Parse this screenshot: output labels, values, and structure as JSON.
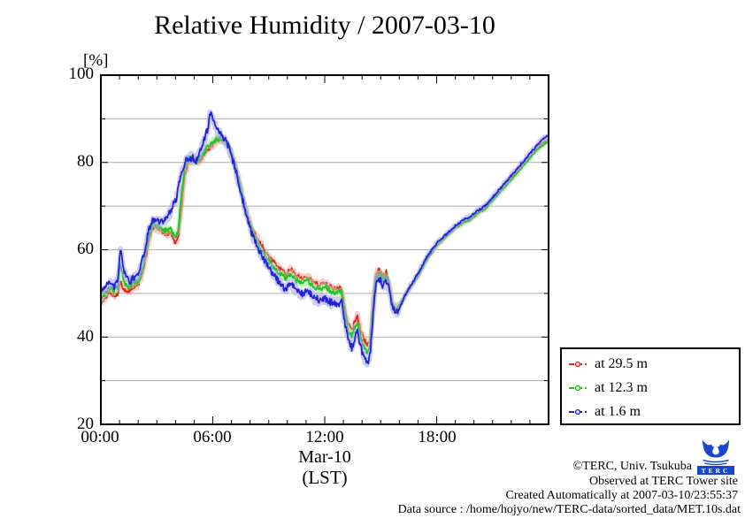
{
  "title": "Relative Humidity / 2007-03-10",
  "y_axis": {
    "unit_label": "[%]",
    "tick_labels": [
      "100",
      "80",
      "60",
      "40",
      "20"
    ],
    "min": 20,
    "max": 100,
    "grid_step": 10
  },
  "x_axis": {
    "tick_labels": [
      "00:00",
      "06:00",
      "12:00",
      "18:00"
    ],
    "date_label": "Mar-10",
    "tz_label": "(LST)",
    "hours_span": 24,
    "minor_tick_hours": 1,
    "major_tick_hours": 6
  },
  "legend": [
    {
      "label": "at 29.5 m",
      "color": "#e0271e"
    },
    {
      "label": "at 12.3 m",
      "color": "#22c322"
    },
    {
      "label": "at 1.6 m",
      "color": "#2424d6"
    }
  ],
  "footer": {
    "copyright": "©TERC, Univ. Tsukuba",
    "observed": "Observed at TERC Tower site",
    "created": "Created Automatically at 2007-03-10/23:55:37",
    "source": "Data source : /home/hojyo/new/TERC-data/sorted_data/MET.10s.dat",
    "logo_text": "TERC",
    "logo_color": "#1a46cf"
  },
  "colors": {
    "grid": "#ababab",
    "frame": "#000000"
  },
  "chart_data": {
    "type": "line",
    "title": "Relative Humidity / 2007-03-10",
    "xlabel": "Mar-10 (LST)",
    "ylabel": "[%]",
    "x_unit": "hours LST",
    "xlim": [
      0,
      24
    ],
    "ylim": [
      20,
      100
    ],
    "grid": true,
    "legend_position": "outside-bottom-right",
    "series": [
      {
        "name": "at 29.5 m",
        "color": "#e0271e",
        "halo": "#f7a39c",
        "noise": 0.5,
        "points": [
          [
            0,
            47.5
          ],
          [
            0.25,
            49
          ],
          [
            0.5,
            50.5
          ],
          [
            0.7,
            49.5
          ],
          [
            0.9,
            50
          ],
          [
            1.05,
            52.5
          ],
          [
            1.25,
            51
          ],
          [
            1.5,
            50.5
          ],
          [
            1.75,
            51.5
          ],
          [
            2,
            52
          ],
          [
            2.2,
            54
          ],
          [
            2.4,
            58
          ],
          [
            2.6,
            62.5
          ],
          [
            2.8,
            65
          ],
          [
            3,
            65
          ],
          [
            3.2,
            64.5
          ],
          [
            3.5,
            63.5
          ],
          [
            3.7,
            64
          ],
          [
            3.85,
            63
          ],
          [
            4,
            61.5
          ],
          [
            4.15,
            63
          ],
          [
            4.3,
            69
          ],
          [
            4.5,
            77
          ],
          [
            4.7,
            80.5
          ],
          [
            4.9,
            80.5
          ],
          [
            5.1,
            80
          ],
          [
            5.3,
            80.5
          ],
          [
            5.5,
            81.5
          ],
          [
            5.7,
            83
          ],
          [
            5.9,
            83.5
          ],
          [
            6.1,
            84.5
          ],
          [
            6.35,
            85.3
          ],
          [
            6.6,
            85
          ],
          [
            6.8,
            84
          ],
          [
            7,
            82
          ],
          [
            7.3,
            78
          ],
          [
            7.6,
            72.5
          ],
          [
            7.9,
            67.5
          ],
          [
            8.1,
            65
          ],
          [
            8.4,
            62.5
          ],
          [
            8.7,
            60.5
          ],
          [
            9,
            58.5
          ],
          [
            9.3,
            57
          ],
          [
            9.6,
            55.5
          ],
          [
            9.9,
            54.5
          ],
          [
            10.2,
            55.5
          ],
          [
            10.5,
            54
          ],
          [
            10.8,
            53.5
          ],
          [
            11.1,
            54
          ],
          [
            11.4,
            52.5
          ],
          [
            11.7,
            52
          ],
          [
            12,
            52.5
          ],
          [
            12.3,
            51.5
          ],
          [
            12.6,
            51
          ],
          [
            12.9,
            51.5
          ],
          [
            13.1,
            46
          ],
          [
            13.25,
            43
          ],
          [
            13.45,
            41.5
          ],
          [
            13.6,
            43.5
          ],
          [
            13.75,
            45
          ],
          [
            13.9,
            42
          ],
          [
            14.1,
            39.5
          ],
          [
            14.3,
            38
          ],
          [
            14.45,
            40
          ],
          [
            14.6,
            49
          ],
          [
            14.75,
            54.5
          ],
          [
            14.9,
            55.5
          ],
          [
            15.1,
            54
          ],
          [
            15.3,
            55
          ],
          [
            15.45,
            52.5
          ],
          [
            15.65,
            47.5
          ],
          [
            15.85,
            46.5
          ],
          [
            16.05,
            47.5
          ],
          [
            16.3,
            49.5
          ],
          [
            16.6,
            51.5
          ],
          [
            17,
            54
          ],
          [
            17.5,
            58
          ],
          [
            18,
            61
          ],
          [
            18.5,
            63
          ],
          [
            19,
            65
          ],
          [
            19.5,
            66.5
          ],
          [
            19.8,
            67
          ],
          [
            20.2,
            68.5
          ],
          [
            20.6,
            69.5
          ],
          [
            21,
            71.5
          ],
          [
            21.5,
            74
          ],
          [
            22,
            76.5
          ],
          [
            22.5,
            79
          ],
          [
            23,
            81.5
          ],
          [
            23.4,
            83.5
          ],
          [
            23.7,
            84.5
          ],
          [
            23.95,
            85
          ]
        ]
      },
      {
        "name": "at 12.3 m",
        "color": "#22c322",
        "halo": "#a2e8a2",
        "noise": 0.55,
        "points": [
          [
            0,
            48.5
          ],
          [
            0.25,
            50
          ],
          [
            0.5,
            51.5
          ],
          [
            0.7,
            50.5
          ],
          [
            0.9,
            51.5
          ],
          [
            1.05,
            57
          ],
          [
            1.25,
            52.5
          ],
          [
            1.5,
            51.5
          ],
          [
            1.75,
            52.5
          ],
          [
            2,
            53
          ],
          [
            2.2,
            55
          ],
          [
            2.4,
            59
          ],
          [
            2.6,
            63.5
          ],
          [
            2.8,
            66
          ],
          [
            3,
            65.5
          ],
          [
            3.2,
            65
          ],
          [
            3.5,
            64.5
          ],
          [
            3.7,
            65
          ],
          [
            3.85,
            64
          ],
          [
            4,
            63
          ],
          [
            4.15,
            64.5
          ],
          [
            4.3,
            72
          ],
          [
            4.5,
            79
          ],
          [
            4.7,
            81
          ],
          [
            4.9,
            81
          ],
          [
            5.1,
            80
          ],
          [
            5.3,
            81
          ],
          [
            5.5,
            82
          ],
          [
            5.7,
            83.5
          ],
          [
            5.9,
            84.5
          ],
          [
            6.1,
            85
          ],
          [
            6.35,
            85.5
          ],
          [
            6.6,
            85.2
          ],
          [
            6.8,
            84.5
          ],
          [
            7,
            82
          ],
          [
            7.3,
            77.5
          ],
          [
            7.6,
            72
          ],
          [
            7.9,
            67
          ],
          [
            8.1,
            64.5
          ],
          [
            8.4,
            61.5
          ],
          [
            8.7,
            59.5
          ],
          [
            9,
            57.5
          ],
          [
            9.3,
            55.5
          ],
          [
            9.6,
            54.5
          ],
          [
            9.9,
            53.5
          ],
          [
            10.2,
            54.5
          ],
          [
            10.5,
            53
          ],
          [
            10.8,
            52.5
          ],
          [
            11.1,
            53
          ],
          [
            11.4,
            51.5
          ],
          [
            11.7,
            51
          ],
          [
            12,
            51.5
          ],
          [
            12.3,
            50.5
          ],
          [
            12.6,
            50
          ],
          [
            12.9,
            50.5
          ],
          [
            13.1,
            45
          ],
          [
            13.25,
            41.5
          ],
          [
            13.45,
            40
          ],
          [
            13.6,
            42
          ],
          [
            13.75,
            43.5
          ],
          [
            13.9,
            40.5
          ],
          [
            14.1,
            37.5
          ],
          [
            14.3,
            36.5
          ],
          [
            14.45,
            38.5
          ],
          [
            14.6,
            47.5
          ],
          [
            14.75,
            53.5
          ],
          [
            14.9,
            54.5
          ],
          [
            15.1,
            53
          ],
          [
            15.3,
            54
          ],
          [
            15.45,
            52
          ],
          [
            15.65,
            47
          ],
          [
            15.85,
            46
          ],
          [
            16.05,
            47.5
          ],
          [
            16.3,
            49.5
          ],
          [
            16.6,
            51.5
          ],
          [
            17,
            54
          ],
          [
            17.5,
            58
          ],
          [
            18,
            61
          ],
          [
            18.5,
            63
          ],
          [
            19,
            65
          ],
          [
            19.5,
            66.3
          ],
          [
            19.8,
            66.8
          ],
          [
            20.2,
            68.3
          ],
          [
            20.6,
            69.3
          ],
          [
            21,
            71.3
          ],
          [
            21.5,
            73.7
          ],
          [
            22,
            76
          ],
          [
            22.5,
            78.5
          ],
          [
            23,
            81
          ],
          [
            23.4,
            83
          ],
          [
            23.7,
            84
          ],
          [
            23.95,
            84.8
          ]
        ]
      },
      {
        "name": "at 1.6 m",
        "color": "#2424d6",
        "halo": "#a4a4f2",
        "noise": 0.8,
        "points": [
          [
            0,
            50
          ],
          [
            0.25,
            51.5
          ],
          [
            0.5,
            52.5
          ],
          [
            0.7,
            51.5
          ],
          [
            0.9,
            53
          ],
          [
            1.05,
            60
          ],
          [
            1.25,
            55
          ],
          [
            1.5,
            52.5
          ],
          [
            1.75,
            53.5
          ],
          [
            2,
            54.5
          ],
          [
            2.2,
            57
          ],
          [
            2.4,
            61
          ],
          [
            2.6,
            65
          ],
          [
            2.8,
            67
          ],
          [
            3,
            66.5
          ],
          [
            3.2,
            66.5
          ],
          [
            3.5,
            67
          ],
          [
            3.7,
            68.5
          ],
          [
            3.85,
            70
          ],
          [
            4.05,
            72
          ],
          [
            4.3,
            77
          ],
          [
            4.5,
            80
          ],
          [
            4.7,
            81
          ],
          [
            4.9,
            81
          ],
          [
            5.1,
            80.5
          ],
          [
            5.3,
            82
          ],
          [
            5.5,
            84.5
          ],
          [
            5.7,
            87.5
          ],
          [
            5.9,
            92
          ],
          [
            6.05,
            89
          ],
          [
            6.2,
            87.5
          ],
          [
            6.4,
            86.5
          ],
          [
            6.6,
            85.5
          ],
          [
            6.8,
            84
          ],
          [
            7,
            81.5
          ],
          [
            7.3,
            77
          ],
          [
            7.6,
            71.5
          ],
          [
            7.9,
            66.5
          ],
          [
            8.1,
            63.5
          ],
          [
            8.4,
            60.5
          ],
          [
            8.7,
            58
          ],
          [
            9,
            56
          ],
          [
            9.3,
            54
          ],
          [
            9.6,
            52.5
          ],
          [
            9.9,
            51
          ],
          [
            10.2,
            52
          ],
          [
            10.5,
            50.5
          ],
          [
            10.8,
            50
          ],
          [
            11.1,
            50.5
          ],
          [
            11.4,
            49
          ],
          [
            11.7,
            48.5
          ],
          [
            12,
            49
          ],
          [
            12.3,
            48
          ],
          [
            12.6,
            47.5
          ],
          [
            12.9,
            48
          ],
          [
            13.1,
            42.5
          ],
          [
            13.25,
            39.5
          ],
          [
            13.45,
            37.5
          ],
          [
            13.6,
            39.5
          ],
          [
            13.75,
            41.5
          ],
          [
            13.9,
            38
          ],
          [
            14.1,
            35.5
          ],
          [
            14.3,
            34
          ],
          [
            14.45,
            36.5
          ],
          [
            14.6,
            45.5
          ],
          [
            14.75,
            52.5
          ],
          [
            14.9,
            53.5
          ],
          [
            15.1,
            52
          ],
          [
            15.3,
            53
          ],
          [
            15.45,
            51
          ],
          [
            15.65,
            46.5
          ],
          [
            15.85,
            45.5
          ],
          [
            16.05,
            47
          ],
          [
            16.3,
            49.5
          ],
          [
            16.6,
            51.8
          ],
          [
            17,
            54.5
          ],
          [
            17.5,
            58.5
          ],
          [
            18,
            61.5
          ],
          [
            18.5,
            63.5
          ],
          [
            19,
            65.5
          ],
          [
            19.5,
            67
          ],
          [
            19.8,
            67.5
          ],
          [
            20.2,
            69
          ],
          [
            20.6,
            70
          ],
          [
            21,
            72
          ],
          [
            21.5,
            74.5
          ],
          [
            22,
            77
          ],
          [
            22.5,
            79.5
          ],
          [
            23,
            82
          ],
          [
            23.4,
            84
          ],
          [
            23.7,
            85.5
          ],
          [
            23.95,
            86
          ]
        ]
      }
    ]
  }
}
